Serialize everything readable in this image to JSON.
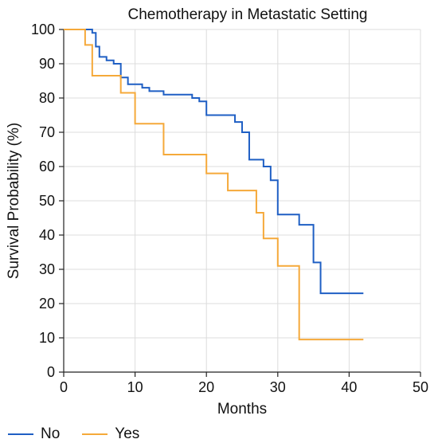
{
  "chart_data": {
    "type": "line",
    "title": "Chemotherapy in Metastatic Setting",
    "xlabel": "Months",
    "ylabel": "Survival Probability (%)",
    "xlim": [
      0,
      50
    ],
    "ylim": [
      0,
      100
    ],
    "xticks": [
      0,
      10,
      20,
      30,
      40,
      50
    ],
    "yticks": [
      0,
      10,
      20,
      30,
      40,
      50,
      60,
      70,
      80,
      90,
      100
    ],
    "grid": true,
    "legend_position": "bottom-left",
    "step": true,
    "series": [
      {
        "name": "No",
        "color": "#1f5fc4",
        "x": [
          0,
          4,
          4.5,
          5,
          6,
          7,
          8,
          9,
          11,
          12,
          14,
          16,
          18,
          19,
          20,
          24,
          25,
          26,
          28,
          29,
          30,
          33,
          35,
          36,
          42
        ],
        "y": [
          100,
          99,
          95,
          92,
          91,
          90,
          86,
          84,
          83,
          82,
          81,
          81,
          80,
          79,
          75,
          73,
          70,
          62,
          60,
          56,
          46,
          43,
          32,
          23,
          23
        ]
      },
      {
        "name": "Yes",
        "color": "#f5a93a",
        "x": [
          0,
          3,
          4,
          8,
          10,
          14,
          20,
          23,
          27,
          28,
          30,
          33,
          42
        ],
        "y": [
          100,
          95.5,
          86.5,
          81.5,
          72.5,
          63.5,
          58,
          53,
          46.5,
          39,
          31,
          9.5,
          9.5
        ]
      }
    ]
  }
}
